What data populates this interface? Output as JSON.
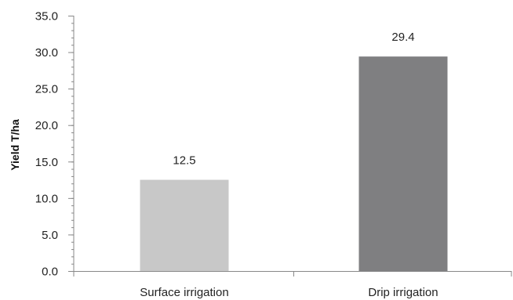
{
  "chart_data": {
    "type": "bar",
    "categories": [
      "Surface irrigation",
      "Drip irrigation"
    ],
    "values": [
      12.5,
      29.4
    ],
    "data_labels": [
      "12.5",
      "29.4"
    ],
    "title": "",
    "xlabel": "",
    "ylabel": "Yield T/ha",
    "ylim": [
      0,
      35
    ],
    "yticks": [
      0,
      5,
      10,
      15,
      20,
      25,
      30,
      35
    ],
    "ytick_labels": [
      "0.0",
      "5.0",
      "10.0",
      "15.0",
      "20.0",
      "25.0",
      "30.0",
      "35.0"
    ],
    "minor_tick_step": 1,
    "grid": false,
    "legend": "none",
    "bar_colors": [
      "#c8c8c8",
      "#7f7f81"
    ],
    "axis_color": "#888888"
  }
}
